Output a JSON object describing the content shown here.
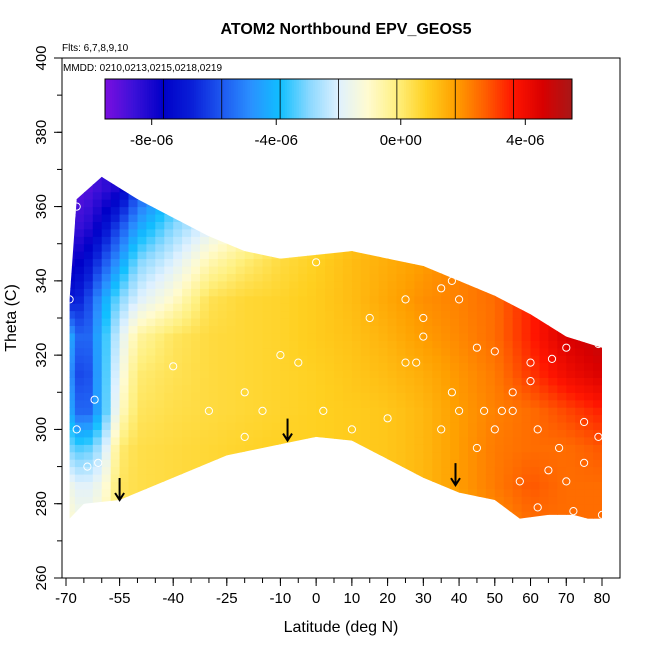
{
  "chart_data": {
    "type": "heatmap",
    "title": "ATOM2 Northbound EPV_GEOS5",
    "xlabel": "Latitude (deg N)",
    "ylabel": "Theta (C)",
    "xlim": [
      -70,
      80
    ],
    "ylim": [
      260,
      400
    ],
    "x_ticks": [
      -70,
      -55,
      -40,
      -25,
      -10,
      0,
      10,
      20,
      30,
      40,
      50,
      60,
      70,
      80
    ],
    "x_tick_labels": [
      "-70",
      "-55",
      "-40",
      "-25",
      "-10",
      "0",
      "10",
      "20",
      "30",
      "40",
      "50",
      "60",
      "70",
      "80"
    ],
    "y_ticks": [
      260,
      280,
      300,
      320,
      340,
      360,
      380,
      400
    ],
    "y_tick_labels": [
      "260",
      "280",
      "300",
      "320",
      "340",
      "360",
      "380",
      "400"
    ],
    "annotations": {
      "flights": "Flts: 6,7,8,9,10",
      "dates": "MMDD: 0210,0213,0215,0218,0219"
    },
    "colorbar": {
      "range": [
        -9.5e-06,
        5.5e-06
      ],
      "ticks": [
        -8e-06,
        -4e-06,
        0,
        4e-06
      ],
      "tick_labels": [
        "-8e-06",
        "-4e-06",
        "0e+00",
        "4e-06"
      ],
      "colors": [
        "#7b0fe0",
        "#3b10d8",
        "#0000c8",
        "#0a20d8",
        "#1e58f0",
        "#2a90ff",
        "#10bfff",
        "#8ad8ff",
        "#dff1ff",
        "#fffbd0",
        "#fff080",
        "#ffd020",
        "#ffa000",
        "#ff6000",
        "#ff1500",
        "#d80000",
        "#a81818"
      ]
    },
    "arrows_latitude": [
      -55,
      -8,
      39
    ],
    "arrows_theta_tip": [
      281,
      297,
      285
    ],
    "upper_boundary": [
      [
        -69,
        335
      ],
      [
        -67,
        362
      ],
      [
        -60,
        368
      ],
      [
        -50,
        362
      ],
      [
        -40,
        357
      ],
      [
        -30,
        352
      ],
      [
        -20,
        348
      ],
      [
        -10,
        346
      ],
      [
        0,
        347
      ],
      [
        10,
        348
      ],
      [
        20,
        346
      ],
      [
        30,
        344
      ],
      [
        40,
        340
      ],
      [
        50,
        336
      ],
      [
        60,
        331
      ],
      [
        70,
        325
      ],
      [
        80,
        322
      ]
    ],
    "lower_boundary": [
      [
        80,
        276
      ],
      [
        76,
        276
      ],
      [
        72,
        277
      ],
      [
        65,
        277
      ],
      [
        57,
        276
      ],
      [
        50,
        281
      ],
      [
        40,
        283
      ],
      [
        30,
        287
      ],
      [
        20,
        292
      ],
      [
        10,
        297
      ],
      [
        0,
        298
      ],
      [
        -10,
        296
      ],
      [
        -25,
        293
      ],
      [
        -35,
        289
      ],
      [
        -45,
        285
      ],
      [
        -55,
        281
      ],
      [
        -65,
        280
      ],
      [
        -69,
        276
      ]
    ],
    "epv_grid": {
      "latitudes": [
        -70,
        -65,
        -60,
        -55,
        -50,
        -40,
        -30,
        -20,
        -10,
        0,
        10,
        20,
        30,
        40,
        50,
        60,
        70,
        80
      ],
      "thetas": [
        275,
        285,
        295,
        305,
        315,
        325,
        335,
        345,
        355,
        365
      ],
      "values": [
        [
          -1e-06,
          -1.5e-06,
          -1e-06,
          2e-07,
          4e-07,
          5e-07,
          6e-07,
          6e-07,
          6e-07,
          6e-07,
          7e-07,
          8e-07,
          1e-06,
          1.5e-06,
          2e-06,
          2.5e-06,
          2.5e-06,
          2.5e-06
        ],
        [
          -1.5e-06,
          -2e-06,
          -1.5e-06,
          2e-07,
          4e-07,
          5e-07,
          6e-07,
          6e-07,
          7e-07,
          7e-07,
          8e-07,
          1e-06,
          1.3e-06,
          1.8e-06,
          2.3e-06,
          2.8e-06,
          2.5e-06,
          2.5e-06
        ],
        [
          -3e-06,
          -3.5e-06,
          -2.5e-06,
          0,
          4e-07,
          5e-07,
          6e-07,
          7e-07,
          8e-07,
          8e-07,
          9e-07,
          1e-06,
          1.3e-06,
          1.8e-06,
          2.3e-06,
          2.5e-06,
          2.5e-06,
          2.8e-06
        ],
        [
          -4e-06,
          -6e-06,
          -4e-06,
          -1e-06,
          2e-07,
          4e-07,
          5e-07,
          6e-07,
          7e-07,
          8e-07,
          9e-07,
          1e-06,
          1.3e-06,
          1.8e-06,
          2.2e-06,
          2.5e-06,
          3e-06,
          3.5e-06
        ],
        [
          -4.5e-06,
          -6.5e-06,
          -4e-06,
          -1.5e-06,
          0,
          3e-07,
          5e-07,
          6e-07,
          7e-07,
          8e-07,
          1e-06,
          1.2e-06,
          1.5e-06,
          1.9e-06,
          2.3e-06,
          3.2e-06,
          4e-06,
          4.5e-06
        ],
        [
          -4e-06,
          -6e-06,
          -4e-06,
          -2e-06,
          -5e-07,
          2e-07,
          5e-07,
          6e-07,
          7e-07,
          9e-07,
          1.1e-06,
          1.4e-06,
          1.8e-06,
          2.1e-06,
          2.5e-06,
          3.5e-06,
          4.5e-06,
          5e-06
        ],
        [
          -7e-06,
          -6.5e-06,
          -4.5e-06,
          -3e-06,
          -2e-06,
          -1e-06,
          3e-07,
          6e-07,
          7e-07,
          9e-07,
          1.2e-06,
          1.6e-06,
          2e-06,
          2.2e-06,
          2.5e-06,
          3.5e-06,
          4.5e-06,
          5e-06
        ],
        [
          -8e-06,
          -7.5e-06,
          -6e-06,
          -4.5e-06,
          -3e-06,
          -2e-06,
          -7e-07,
          0,
          5e-07,
          8e-07,
          1.2e-06,
          1.5e-06,
          1.8e-06,
          2.2e-06,
          2.5e-06,
          3.5e-06,
          4.5e-06,
          5e-06
        ],
        [
          -8.5e-06,
          -8.5e-06,
          -7.5e-06,
          -6e-06,
          -4.5e-06,
          -3e-06,
          -2e-06,
          -1e-06,
          0,
          5e-07,
          1e-06,
          1.5e-06,
          2e-06,
          2.5e-06,
          3e-06,
          3.5e-06,
          4.5e-06,
          5e-06
        ],
        [
          -9e-06,
          -9e-06,
          -8.5e-06,
          -8e-06,
          -6e-06,
          -4e-06,
          -3e-06,
          -2e-06,
          -1e-06,
          0,
          1e-06,
          1.5e-06,
          2e-06,
          2.5e-06,
          3e-06,
          3.5e-06,
          4.5e-06,
          5e-06
        ]
      ]
    },
    "sample_points": [
      [
        -67,
        360
      ],
      [
        -69,
        335
      ],
      [
        -62,
        308
      ],
      [
        -67,
        300
      ],
      [
        -64,
        290
      ],
      [
        -61,
        291
      ],
      [
        -40,
        317
      ],
      [
        -30,
        305
      ],
      [
        -20,
        310
      ],
      [
        -15,
        305
      ],
      [
        -20,
        298
      ],
      [
        -10,
        320
      ],
      [
        -5,
        318
      ],
      [
        0,
        345
      ],
      [
        2,
        305
      ],
      [
        10,
        300
      ],
      [
        20,
        303
      ],
      [
        15,
        330
      ],
      [
        25,
        335
      ],
      [
        30,
        325
      ],
      [
        35,
        338
      ],
      [
        40,
        335
      ],
      [
        28,
        318
      ],
      [
        38,
        310
      ],
      [
        45,
        322
      ],
      [
        50,
        321
      ],
      [
        55,
        310
      ],
      [
        60,
        318
      ],
      [
        70,
        322
      ],
      [
        79,
        323
      ],
      [
        66,
        319
      ],
      [
        60,
        313
      ],
      [
        55,
        305
      ],
      [
        62,
        300
      ],
      [
        68,
        295
      ],
      [
        75,
        302
      ],
      [
        79,
        298
      ],
      [
        40,
        305
      ],
      [
        47,
        305
      ],
      [
        52,
        305
      ],
      [
        65,
        289
      ],
      [
        70,
        286
      ],
      [
        75,
        291
      ],
      [
        57,
        286
      ],
      [
        62,
        279
      ],
      [
        72,
        278
      ],
      [
        80,
        277
      ],
      [
        45,
        295
      ],
      [
        50,
        300
      ],
      [
        35,
        300
      ],
      [
        25,
        318
      ],
      [
        30,
        330
      ],
      [
        38,
        340
      ]
    ]
  }
}
